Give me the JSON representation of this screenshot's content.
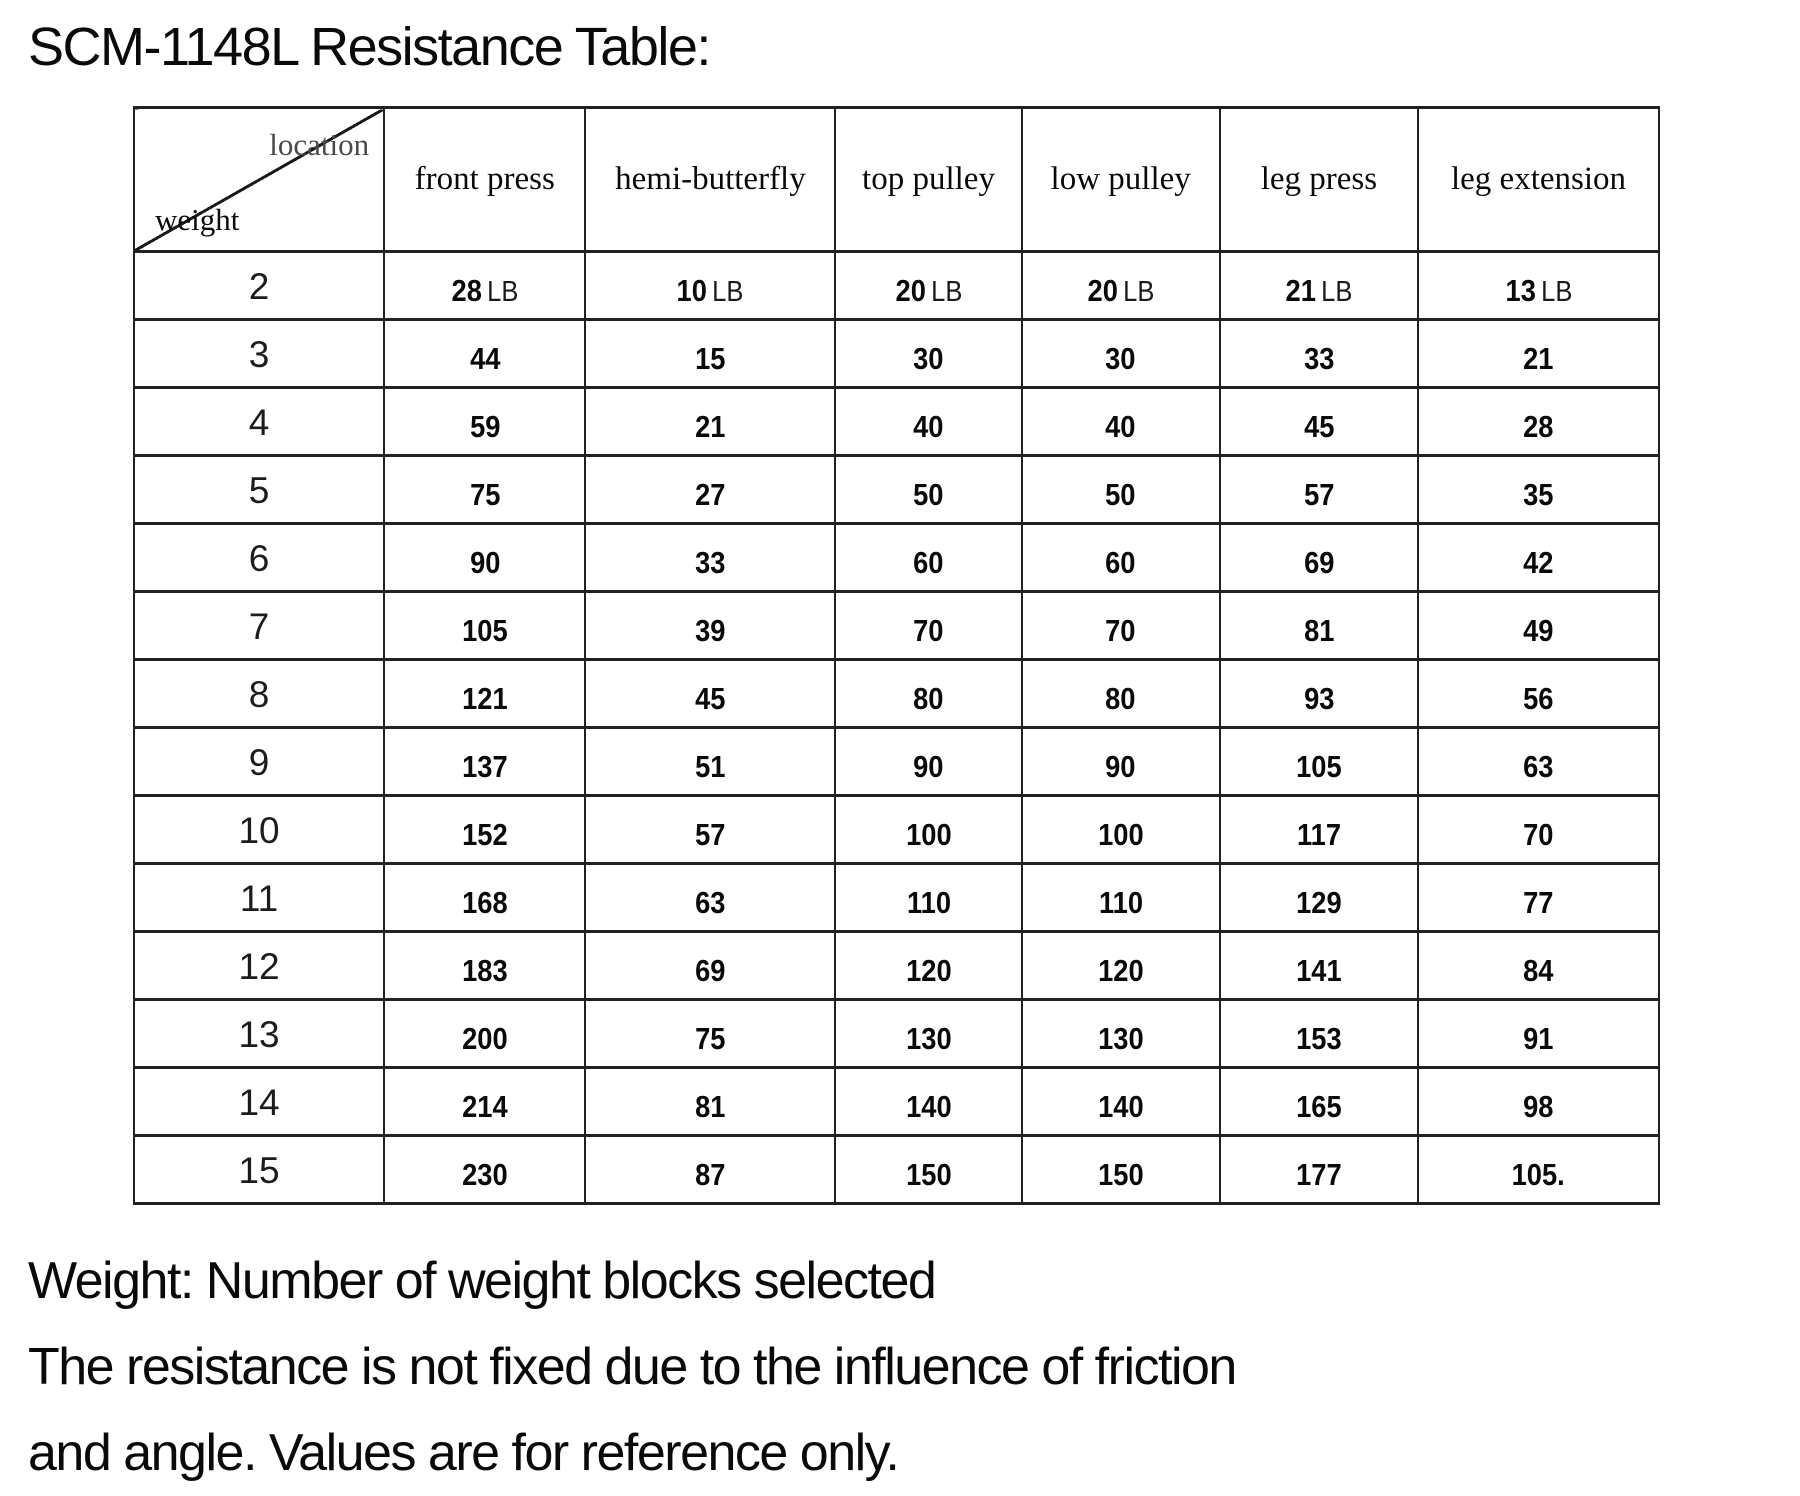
{
  "title": "SCM-1148L Resistance Table:",
  "table": {
    "corner": {
      "top_label": "location",
      "bottom_label": "weight"
    },
    "columns": [
      "front press",
      "hemi-butterfly",
      "top pulley",
      "low pulley",
      "leg press",
      "leg extension"
    ],
    "unit": "LB",
    "rows": [
      {
        "weight": "2",
        "unit_row": true,
        "values": [
          "28",
          "10",
          "20",
          "20",
          "21",
          "13"
        ]
      },
      {
        "weight": "3",
        "values": [
          "44",
          "15",
          "30",
          "30",
          "33",
          "21"
        ]
      },
      {
        "weight": "4",
        "values": [
          "59",
          "21",
          "40",
          "40",
          "45",
          "28"
        ]
      },
      {
        "weight": "5",
        "values": [
          "75",
          "27",
          "50",
          "50",
          "57",
          "35"
        ]
      },
      {
        "weight": "6",
        "values": [
          "90",
          "33",
          "60",
          "60",
          "69",
          "42"
        ]
      },
      {
        "weight": "7",
        "values": [
          "105",
          "39",
          "70",
          "70",
          "81",
          "49"
        ]
      },
      {
        "weight": "8",
        "values": [
          "121",
          "45",
          "80",
          "80",
          "93",
          "56"
        ]
      },
      {
        "weight": "9",
        "values": [
          "137",
          "51",
          "90",
          "90",
          "105",
          "63"
        ]
      },
      {
        "weight": "10",
        "values": [
          "152",
          "57",
          "100",
          "100",
          "117",
          "70"
        ]
      },
      {
        "weight": "11",
        "values": [
          "168",
          "63",
          "110",
          "110",
          "129",
          "77"
        ]
      },
      {
        "weight": "12",
        "values": [
          "183",
          "69",
          "120",
          "120",
          "141",
          "84"
        ]
      },
      {
        "weight": "13",
        "values": [
          "200",
          "75",
          "130",
          "130",
          "153",
          "91"
        ]
      },
      {
        "weight": "14",
        "values": [
          "214",
          "81",
          "140",
          "140",
          "165",
          "98"
        ]
      },
      {
        "weight": "15",
        "values": [
          "230",
          "87",
          "150",
          "150",
          "177",
          "105."
        ]
      }
    ]
  },
  "notes": [
    "Weight: Number of weight blocks selected",
    "The resistance is not fixed due to the influence of friction",
    "and angle. Values are for reference only."
  ],
  "colors": {
    "background": "#ffffff",
    "text": "#0a0a0a",
    "location_label": "#4a4a4a",
    "border": "#222222"
  }
}
